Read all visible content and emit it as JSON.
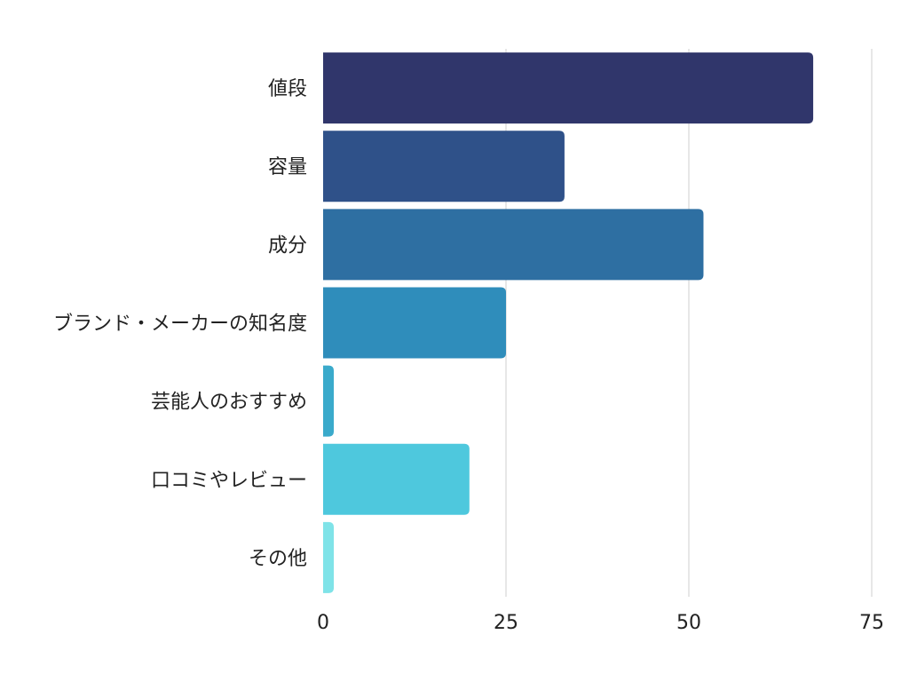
{
  "chart_data": {
    "type": "bar",
    "orientation": "horizontal",
    "title": "",
    "xlabel": "",
    "ylabel": "",
    "categories": [
      "値段",
      "容量",
      "成分",
      "ブランド・メーカーの知名度",
      "芸能人のおすすめ",
      "口コミやレビュー",
      "その他"
    ],
    "values": [
      67,
      33,
      52,
      25,
      1,
      20,
      1
    ],
    "colors": [
      "#30366b",
      "#2f5189",
      "#2e6fa2",
      "#2f8dbb",
      "#3aaacb",
      "#4ec8dd",
      "#7fe3e8"
    ],
    "xlim": [
      0,
      75
    ],
    "xticks": [
      0,
      25,
      50,
      75
    ],
    "xtick_labels": [
      "0",
      "25",
      "50",
      "75"
    ],
    "grid": "vertical",
    "legend": "none"
  }
}
